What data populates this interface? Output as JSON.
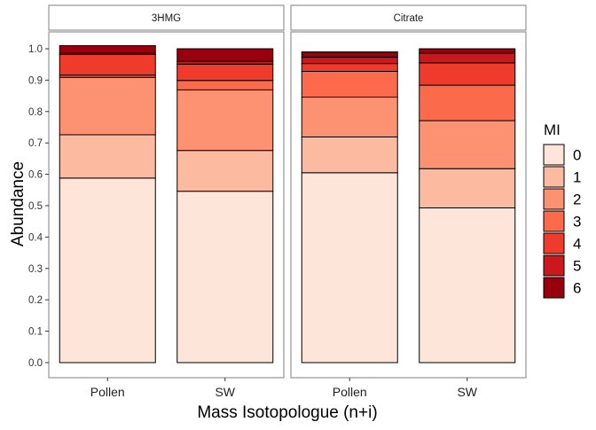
{
  "chart_data": {
    "type": "bar",
    "stacked": true,
    "xlabel": "Mass Isotopologue (n+i)",
    "ylabel": "Abundance",
    "ylim": [
      0,
      1.0
    ],
    "y_ticks": [
      "0.0",
      "0.1",
      "0.2",
      "0.3",
      "0.4",
      "0.5",
      "0.6",
      "0.7",
      "0.8",
      "0.9",
      "1.0"
    ],
    "grid": false,
    "legend": {
      "title": "MI",
      "position": "right",
      "entries": [
        {
          "label": "0",
          "color": "#FEE5D9"
        },
        {
          "label": "1",
          "color": "#FCBBA1"
        },
        {
          "label": "2",
          "color": "#FC9272"
        },
        {
          "label": "3",
          "color": "#FB6A4A"
        },
        {
          "label": "4",
          "color": "#EF3B2C"
        },
        {
          "label": "5",
          "color": "#CB181D"
        },
        {
          "label": "6",
          "color": "#99000D"
        }
      ]
    },
    "panels": [
      {
        "title": "3HMG",
        "categories": [
          "Pollen",
          "SW"
        ],
        "stacks": [
          {
            "category": "Pollen",
            "values": [
              0.588,
              0.138,
              0.183,
              0.007,
              0.066,
              0.004,
              0.024
            ]
          },
          {
            "category": "SW",
            "values": [
              0.546,
              0.13,
              0.193,
              0.03,
              0.052,
              0.009,
              0.04
            ]
          }
        ]
      },
      {
        "title": "Citrate",
        "categories": [
          "Pollen",
          "SW"
        ],
        "stacks": [
          {
            "category": "Pollen",
            "values": [
              0.605,
              0.114,
              0.127,
              0.082,
              0.025,
              0.02,
              0.017
            ]
          },
          {
            "category": "SW",
            "values": [
              0.493,
              0.125,
              0.153,
              0.113,
              0.071,
              0.031,
              0.014
            ]
          }
        ]
      }
    ]
  }
}
